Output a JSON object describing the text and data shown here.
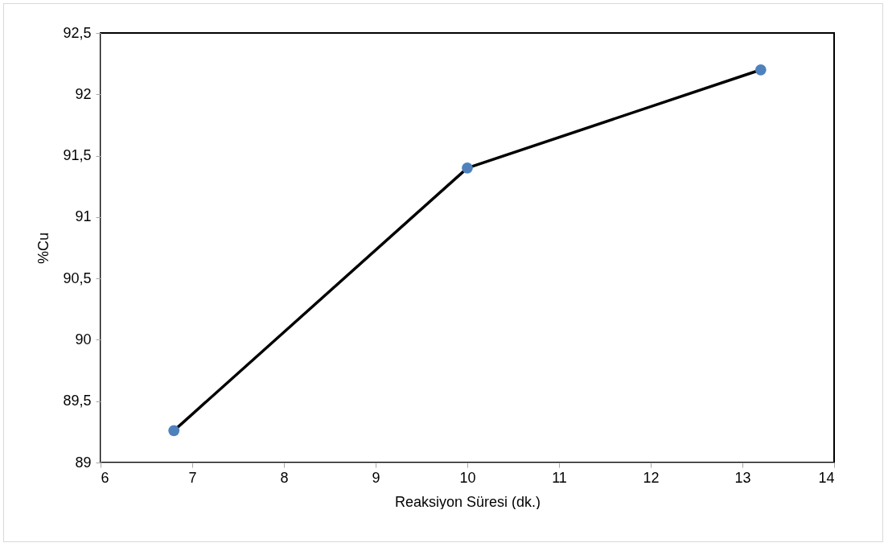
{
  "chart_data": {
    "type": "line",
    "xlabel": "Reaksiyon Süresi (dk.)",
    "ylabel": "%Cu",
    "x": [
      6.8,
      10,
      13.2
    ],
    "series": [
      {
        "color": "#000000",
        "values": [
          89.26,
          91.4,
          92.2
        ]
      }
    ],
    "marker": "circle",
    "line_style": "solid",
    "xlim": [
      6,
      14
    ],
    "xticks": [
      6,
      7,
      8,
      9,
      10,
      11,
      12,
      13,
      14
    ],
    "ylim": [
      89,
      92.5
    ],
    "yticks": [
      {
        "value": 89,
        "label": "89"
      },
      {
        "value": 89.5,
        "label": "89,5"
      },
      {
        "value": 90,
        "label": "90"
      },
      {
        "value": 90.5,
        "label": "90,5"
      },
      {
        "value": 91,
        "label": "91"
      },
      {
        "value": 91.5,
        "label": "91,5"
      },
      {
        "value": 92,
        "label": "92"
      },
      {
        "value": 92.5,
        "label": "92,5"
      }
    ],
    "grid": false,
    "legend": false
  }
}
